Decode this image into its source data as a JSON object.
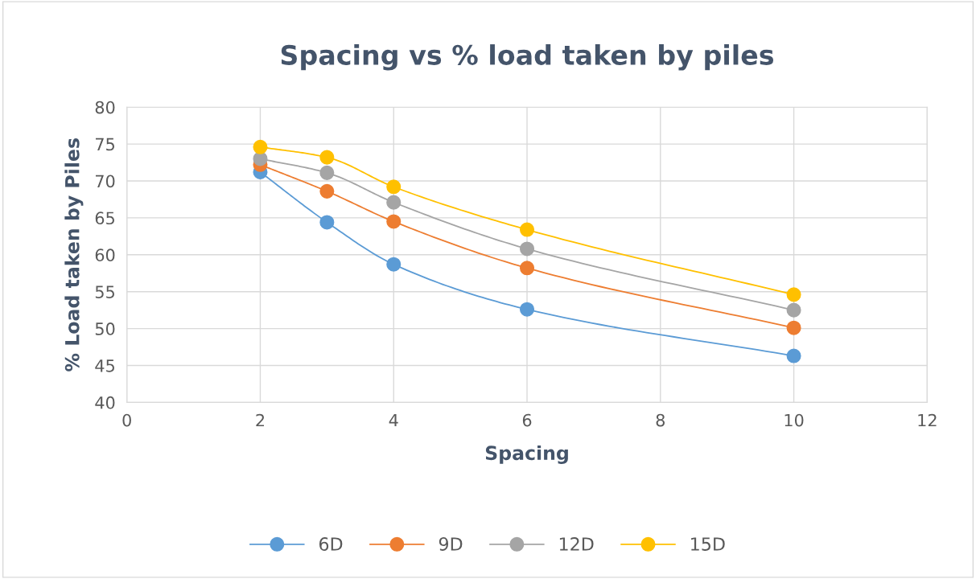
{
  "chart_data": {
    "type": "line",
    "title": "Spacing vs % load taken by piles",
    "xlabel": "Spacing",
    "ylabel": "% Load taken by Piles",
    "x": [
      2,
      3,
      4,
      6,
      10
    ],
    "series": [
      {
        "name": "6D",
        "color": "#5b9bd5",
        "values": [
          71.2,
          64.4,
          58.7,
          52.6,
          46.3
        ]
      },
      {
        "name": "9D",
        "color": "#ed7d31",
        "values": [
          72.2,
          68.6,
          64.5,
          58.2,
          50.1
        ]
      },
      {
        "name": "12D",
        "color": "#a5a5a5",
        "values": [
          73.0,
          71.1,
          67.1,
          60.8,
          52.5
        ]
      },
      {
        "name": "15D",
        "color": "#ffc000",
        "values": [
          74.6,
          73.2,
          69.2,
          63.4,
          54.6
        ]
      }
    ],
    "xlim": [
      0,
      12
    ],
    "xticks": [
      0,
      2,
      4,
      6,
      8,
      10,
      12
    ],
    "ylim": [
      40,
      80
    ],
    "yticks": [
      40,
      45,
      50,
      55,
      60,
      65,
      70,
      75,
      80
    ],
    "grid": true,
    "legend": "bottom",
    "marker": "circle",
    "line_style": "solid"
  }
}
